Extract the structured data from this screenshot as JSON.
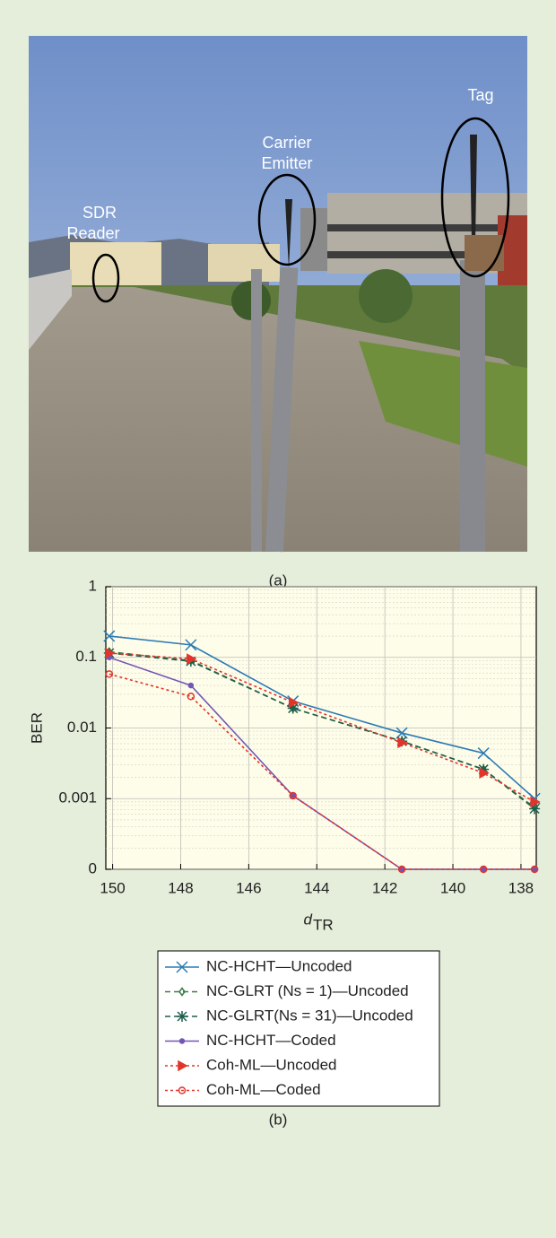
{
  "photo": {
    "labels": {
      "reader": [
        "SDR",
        "Reader"
      ],
      "emitter": [
        "Carrier",
        "Emitter"
      ],
      "tag": [
        "Tag"
      ]
    },
    "caption": "(a)"
  },
  "chart_data": {
    "type": "line",
    "caption": "(b)",
    "ylabel": "BER",
    "xlabel": "d",
    "xlabel_sub": "TR",
    "x": [
      150.1,
      147.7,
      144.7,
      141.5,
      139.1,
      137.6
    ],
    "xlim": [
      150.2,
      137.55
    ],
    "xticks": [
      150,
      148,
      146,
      144,
      142,
      140,
      138
    ],
    "ylim": [
      0.0001,
      1
    ],
    "yscale": "log",
    "yticks": [
      {
        "value": 0.0001,
        "label": "0"
      },
      0.001,
      0.01,
      0.1,
      1
    ],
    "grid": true,
    "legend": "bottom",
    "series": [
      {
        "name": "NC-HCHT—Uncoded",
        "color": "#2c7bb6",
        "dash": "none",
        "marker": "x",
        "values": [
          0.2,
          0.15,
          0.024,
          0.0085,
          0.0044,
          0.001
        ]
      },
      {
        "name": "NC-GLRT (Ns = 1)—Uncoded",
        "color": "#3a7a45",
        "dash": "6 4",
        "marker": "diamond",
        "values": [
          0.12,
          0.09,
          0.019,
          0.0065,
          0.0026,
          0.00075
        ]
      },
      {
        "name": "NC-GLRT(Ns = 31)—Uncoded",
        "color": "#1f5e4c",
        "dash": "6 4",
        "marker": "star",
        "values": [
          0.115,
          0.088,
          0.019,
          0.0065,
          0.0026,
          0.00072
        ]
      },
      {
        "name": "NC-HCHT—Coded",
        "color": "#7356b5",
        "dash": "none",
        "marker": "dot",
        "values": [
          0.1,
          0.04,
          0.0011,
          0.0001,
          0.0001,
          0.0001
        ]
      },
      {
        "name": "Coh-ML—Uncoded",
        "color": "#e3342b",
        "dash": "3 3",
        "marker": "triangle",
        "values": [
          0.115,
          0.095,
          0.023,
          0.0062,
          0.0023,
          0.0009
        ]
      },
      {
        "name": "Coh-ML—Coded",
        "color": "#e3342b",
        "dash": "3 3",
        "marker": "circle",
        "values": [
          0.058,
          0.028,
          0.0011,
          0.0001,
          0.0001,
          0.0001
        ]
      }
    ]
  }
}
